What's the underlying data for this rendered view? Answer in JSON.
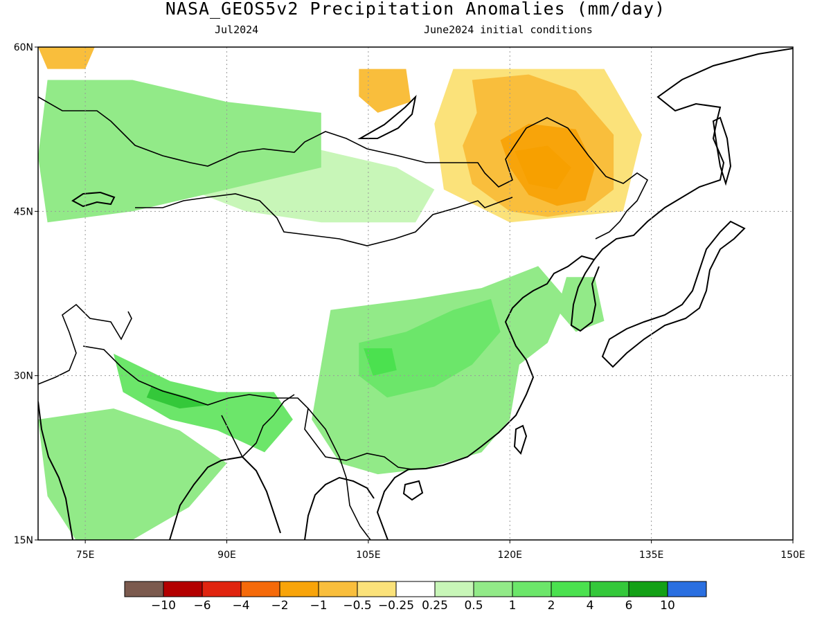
{
  "title": "NASA_GEOS5v2 Precipitation Anomalies (mm/day)",
  "subtitle_left": "Jul2024",
  "subtitle_right": "June2024 initial conditions",
  "map": {
    "lon_range": [
      70,
      150
    ],
    "lat_range": [
      15,
      60
    ],
    "lat_ticks": [
      {
        "value": 60,
        "label": "60N"
      },
      {
        "value": 45,
        "label": "45N"
      },
      {
        "value": 30,
        "label": "30N"
      },
      {
        "value": 15,
        "label": "15N"
      }
    ],
    "lon_ticks": [
      {
        "value": 75,
        "label": "75E"
      },
      {
        "value": 90,
        "label": "90E"
      },
      {
        "value": 105,
        "label": "105E"
      },
      {
        "value": 120,
        "label": "120E"
      },
      {
        "value": 135,
        "label": "135E"
      },
      {
        "value": 150,
        "label": "150E"
      }
    ],
    "gridlines": "dotted"
  },
  "colorbar": {
    "colors": [
      "#7b5a4e",
      "#b30000",
      "#e0240f",
      "#f56a0a",
      "#f8a40a",
      "#f9be3c",
      "#fbe27a",
      "#ffffff",
      "#c8f6b8",
      "#92ea88",
      "#6ce66a",
      "#4be14f",
      "#34c83a",
      "#13a016",
      "#2a6fe0"
    ],
    "labels": [
      "−10",
      "−6",
      "−4",
      "−2",
      "−1",
      "−0.5",
      "−0.25",
      "0.25",
      "0.5",
      "1",
      "2",
      "4",
      "6",
      "10"
    ]
  },
  "anomaly_regions": [
    {
      "name": "Mongolia/NE China dry",
      "level": -2,
      "color": "#f8a40a",
      "pts": [
        [
          122,
          53
        ],
        [
          127,
          52.5
        ],
        [
          129,
          49
        ],
        [
          128,
          46
        ],
        [
          125,
          45.5
        ],
        [
          122,
          46.5
        ],
        [
          120,
          49
        ],
        [
          119,
          51.5
        ]
      ]
    },
    {
      "name": "NE China dry core",
      "level": -2,
      "color": "#f7a000",
      "pts": [
        [
          120.5,
          50.5
        ],
        [
          124,
          51
        ],
        [
          126.5,
          49
        ],
        [
          125,
          47
        ],
        [
          122,
          47.5
        ]
      ]
    },
    {
      "name": "Mongolia dry halo",
      "level": -1,
      "color": "#f9be3c",
      "pts": [
        [
          116,
          57
        ],
        [
          122,
          57.5
        ],
        [
          127,
          56
        ],
        [
          131,
          52
        ],
        [
          131,
          47
        ],
        [
          128,
          45
        ],
        [
          124,
          44.5
        ],
        [
          120,
          45
        ],
        [
          116,
          47.5
        ],
        [
          115,
          51
        ],
        [
          116.5,
          54
        ]
      ]
    },
    {
      "name": "Mongolia outer yellow",
      "level": -0.5,
      "color": "#fbe27a",
      "pts": [
        [
          114,
          58
        ],
        [
          130,
          58
        ],
        [
          134,
          52
        ],
        [
          132,
          45
        ],
        [
          120,
          44
        ],
        [
          113,
          47
        ],
        [
          112,
          53
        ]
      ]
    },
    {
      "name": "Lake Baikal dry",
      "level": -1,
      "color": "#f9be3c",
      "pts": [
        [
          104,
          58
        ],
        [
          109,
          58
        ],
        [
          109.5,
          55
        ],
        [
          106,
          54
        ],
        [
          104,
          55.5
        ]
      ]
    },
    {
      "name": "NW corner dry",
      "level": -1,
      "color": "#f9be3c",
      "pts": [
        [
          70,
          60
        ],
        [
          76,
          60
        ],
        [
          75,
          58
        ],
        [
          71,
          58
        ]
      ]
    },
    {
      "name": "Sichuan/Yunnan wet",
      "level": 1,
      "color": "#92ea88",
      "pts": [
        [
          101,
          36
        ],
        [
          110,
          37
        ],
        [
          117,
          38
        ],
        [
          123,
          40
        ],
        [
          126,
          37
        ],
        [
          124,
          33
        ],
        [
          121,
          31
        ],
        [
          120,
          26
        ],
        [
          117,
          23
        ],
        [
          111,
          21.5
        ],
        [
          106,
          21
        ],
        [
          102,
          22
        ],
        [
          99,
          26
        ],
        [
          100,
          31
        ]
      ]
    },
    {
      "name": "Central China wet core",
      "level": 2,
      "color": "#6ce66a",
      "pts": [
        [
          104,
          33
        ],
        [
          109,
          34
        ],
        [
          114,
          36
        ],
        [
          118,
          37
        ],
        [
          119,
          34
        ],
        [
          116,
          31
        ],
        [
          112,
          29
        ],
        [
          107,
          28
        ],
        [
          104,
          30
        ]
      ]
    },
    {
      "name": "Sichuan strong wet",
      "level": 4,
      "color": "#4be14f",
      "pts": [
        [
          104.5,
          32.5
        ],
        [
          107.5,
          32.5
        ],
        [
          108,
          30.5
        ],
        [
          105.5,
          30
        ]
      ]
    },
    {
      "name": "Himalaya wet",
      "level": 2,
      "color": "#6ce66a",
      "pts": [
        [
          78,
          32
        ],
        [
          84,
          29.5
        ],
        [
          89,
          28.5
        ],
        [
          95,
          28.5
        ],
        [
          97,
          26
        ],
        [
          94,
          23
        ],
        [
          89,
          25
        ],
        [
          84,
          26
        ],
        [
          79,
          28.5
        ]
      ]
    },
    {
      "name": "Nepal strong wet",
      "level": 4,
      "color": "#34c83a",
      "pts": [
        [
          82,
          29
        ],
        [
          86,
          28
        ],
        [
          88,
          27.3
        ],
        [
          85,
          27
        ],
        [
          81.5,
          28
        ]
      ]
    },
    {
      "name": "Kazakhstan wet",
      "level": 1,
      "color": "#92ea88",
      "pts": [
        [
          71,
          57
        ],
        [
          80,
          57
        ],
        [
          90,
          55
        ],
        [
          100,
          54
        ],
        [
          100,
          49
        ],
        [
          90,
          47
        ],
        [
          80,
          45
        ],
        [
          71,
          44
        ],
        [
          70,
          50
        ]
      ]
    },
    {
      "name": "Mongolia west wet",
      "level": 0.5,
      "color": "#c8f6b8",
      "pts": [
        [
          88,
          52
        ],
        [
          98,
          51
        ],
        [
          108,
          49
        ],
        [
          112,
          47
        ],
        [
          110,
          44
        ],
        [
          100,
          44
        ],
        [
          92,
          45
        ],
        [
          86,
          47
        ]
      ]
    },
    {
      "name": "Korea/Japan wet",
      "level": 1,
      "color": "#92ea88",
      "pts": [
        [
          126,
          39
        ],
        [
          129,
          39
        ],
        [
          130,
          35
        ],
        [
          127,
          34
        ],
        [
          125,
          36
        ]
      ]
    },
    {
      "name": "Indian subcontinent wet",
      "level": 1,
      "color": "#92ea88",
      "pts": [
        [
          70,
          26
        ],
        [
          78,
          27
        ],
        [
          85,
          25
        ],
        [
          90,
          22
        ],
        [
          86,
          18
        ],
        [
          80,
          15
        ],
        [
          74,
          15
        ],
        [
          71,
          19
        ]
      ]
    }
  ]
}
